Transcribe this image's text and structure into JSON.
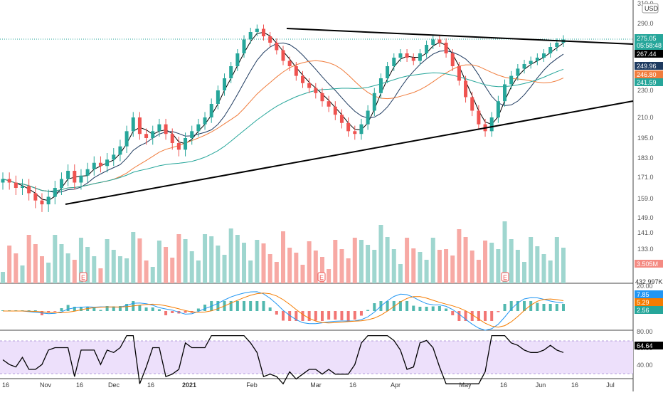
{
  "chart_data": {
    "type": "candlestick",
    "currency_label": "USD",
    "x_axis": {
      "ticks": [
        "16",
        "Nov",
        "16",
        "Dec",
        "16",
        "2021",
        "Feb",
        "Mar",
        "16",
        "Apr",
        "May",
        "16",
        "Jun",
        "16",
        "Jul"
      ]
    },
    "price_panel": {
      "y_ticks": [
        310.0,
        290.0,
        250.0,
        230.0,
        210.0,
        195.0,
        183.0,
        171.0,
        159.0,
        149.0,
        141.0,
        133.0
      ],
      "y_tick_labels": [
        "310.0",
        "290.0",
        "250.0",
        "230.0",
        "210.0",
        "195.0",
        "183.0",
        "171.0",
        "159.0",
        "149.0",
        "141.0",
        "133.0"
      ],
      "last_price": 275.05,
      "last_price_label": "275.05",
      "countdown": "05:58:48",
      "ma_values": [
        {
          "label": "267.44",
          "color": "#000000"
        },
        {
          "label": "249.96",
          "color": "#1e3a5f"
        },
        {
          "label": "246.80",
          "color": "#f07c3c"
        },
        {
          "label": "241.59",
          "color": "#26a69a"
        }
      ],
      "trendlines": [
        {
          "from": [
            "Feb 10",
            285
          ],
          "to": [
            "Jul 31",
            264
          ]
        },
        {
          "from": [
            "Nov 3",
            155
          ],
          "to": [
            "Jul 31",
            220
          ]
        }
      ]
    },
    "volume_panel": {
      "volume_label": "3.505M",
      "volume_ma_label": "432.997K",
      "earnings_marker": "E",
      "earnings_count": 3
    },
    "macd_panel": {
      "y_tick_label": "20.00",
      "values": [
        {
          "label": "7.85",
          "color": "#2196f3"
        },
        {
          "label": "5.29",
          "color": "#f57c00"
        },
        {
          "label": "2.56",
          "color": "#26a69a"
        }
      ]
    },
    "rsi_panel": {
      "y_tick_labels": [
        "80.00",
        "60.00",
        "40.00"
      ],
      "value_label": "64.64"
    },
    "series": [
      {
        "name": "Close",
        "values": [
          170,
          168,
          165,
          166,
          162,
          158,
          156,
          160,
          165,
          170,
          175,
          168,
          172,
          176,
          180,
          178,
          182,
          185,
          190,
          200,
          210,
          198,
          195,
          200,
          205,
          198,
          192,
          188,
          195,
          200,
          205,
          210,
          220,
          230,
          240,
          250,
          262,
          275,
          282,
          285,
          278,
          272,
          265,
          255,
          250,
          242,
          236,
          232,
          228,
          222,
          218,
          212,
          206,
          200,
          198,
          205,
          215,
          228,
          240,
          250,
          258,
          262,
          258,
          255,
          262,
          270,
          275,
          272,
          262,
          250,
          238,
          225,
          215,
          205,
          200,
          210,
          222,
          235,
          242,
          248,
          252,
          255,
          258,
          262,
          268,
          272,
          275
        ]
      }
    ]
  }
}
